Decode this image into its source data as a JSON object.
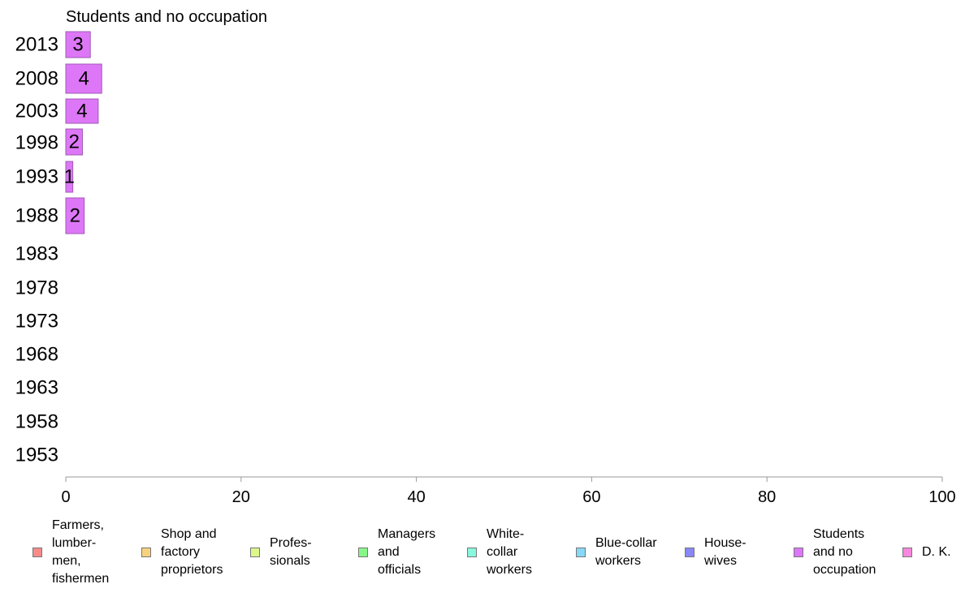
{
  "chart_data": {
    "type": "bar",
    "orientation": "horizontal",
    "title": "Students and no occupation",
    "xlabel": "",
    "ylabel": "",
    "xlim": [
      0,
      100
    ],
    "xticks": [
      "0",
      "20",
      "40",
      "60",
      "80",
      "100"
    ],
    "grid": false,
    "legend_position": "bottom",
    "categories": [
      "2013",
      "2008",
      "2003",
      "1998",
      "1993",
      "1988",
      "1983",
      "1978",
      "1973",
      "1968",
      "1963",
      "1958",
      "1953"
    ],
    "series": [
      {
        "name": "Students and no occupation",
        "color": "#dd77f7",
        "values": [
          2.8,
          4.1,
          3.7,
          1.9,
          0.8,
          2.1,
          null,
          null,
          null,
          null,
          null,
          null,
          null
        ],
        "labels": [
          "3",
          "4",
          "4",
          "2",
          "1",
          "2",
          "",
          "",
          "",
          "",
          "",
          "",
          ""
        ]
      }
    ]
  },
  "legend": [
    {
      "label": "Farmers,\nlumber-\nmen,\nfishermen",
      "color": "#f78a8a"
    },
    {
      "label": "Shop and\nfactory\nproprietors",
      "color": "#f7d27e"
    },
    {
      "label": "Profes-\nsionals",
      "color": "#ddf78a"
    },
    {
      "label": "Managers\nand\nofficials",
      "color": "#88f788"
    },
    {
      "label": "White-\ncollar\nworkers",
      "color": "#88f7dd"
    },
    {
      "label": "Blue-collar\nworkers",
      "color": "#88d8f7"
    },
    {
      "label": "House-\nwives",
      "color": "#8888f7"
    },
    {
      "label": "Students\nand no\noccupation",
      "color": "#dd77f7"
    },
    {
      "label": "D. K.",
      "color": "#f788dd"
    }
  ]
}
